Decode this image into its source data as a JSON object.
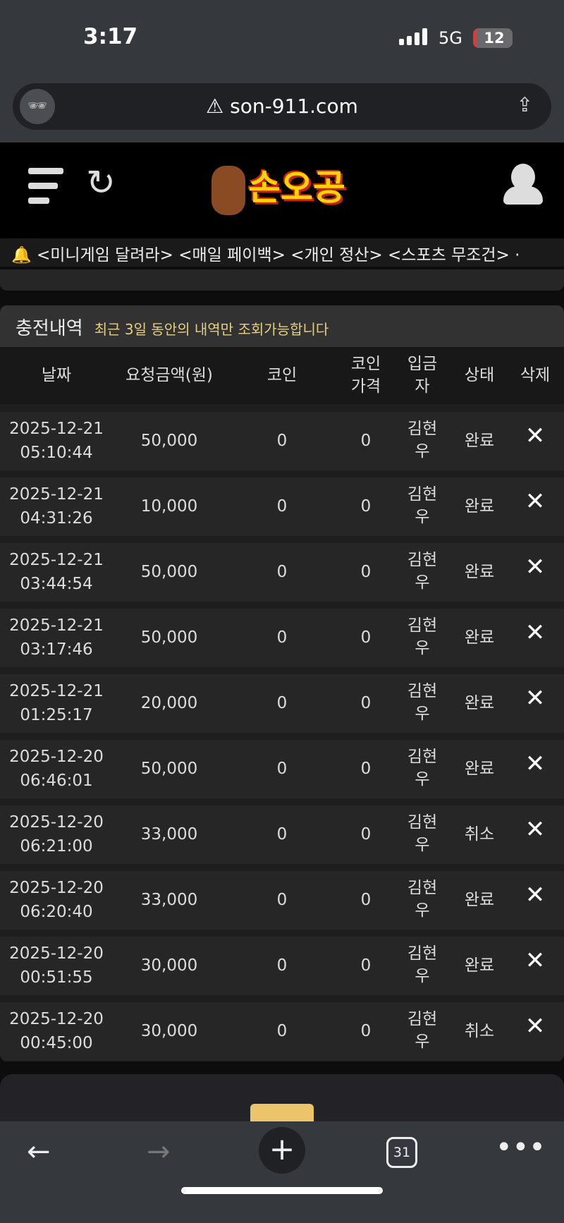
{
  "status_bar": {
    "time": "3:17",
    "network": "5G",
    "battery": "12"
  },
  "browser": {
    "url": "son-911.com",
    "tab_count": "31"
  },
  "site": {
    "logo_text": "손오공",
    "ticker": "<미니게임 달려라> <매일 페이백> <개인 정산> <스포츠 무조건> ·"
  },
  "section": {
    "title": "충전내역",
    "note": "최근 3일 동안의 내역만 조회가능합니다"
  },
  "table": {
    "headers": [
      "날짜",
      "요청금액(원)",
      "코인",
      "코인\n가격",
      "입금\n자",
      "상태",
      "삭제"
    ],
    "rows": [
      {
        "date": "2025-12-21",
        "time": "05:10:44",
        "amount": "50,000",
        "coin": "0",
        "price": "0",
        "depositor": "김현우",
        "status": "완료"
      },
      {
        "date": "2025-12-21",
        "time": "04:31:26",
        "amount": "10,000",
        "coin": "0",
        "price": "0",
        "depositor": "김현우",
        "status": "완료"
      },
      {
        "date": "2025-12-21",
        "time": "03:44:54",
        "amount": "50,000",
        "coin": "0",
        "price": "0",
        "depositor": "김현우",
        "status": "완료"
      },
      {
        "date": "2025-12-21",
        "time": "03:17:46",
        "amount": "50,000",
        "coin": "0",
        "price": "0",
        "depositor": "김현우",
        "status": "완료"
      },
      {
        "date": "2025-12-21",
        "time": "01:25:17",
        "amount": "20,000",
        "coin": "0",
        "price": "0",
        "depositor": "김현우",
        "status": "완료"
      },
      {
        "date": "2025-12-20",
        "time": "06:46:01",
        "amount": "50,000",
        "coin": "0",
        "price": "0",
        "depositor": "김현우",
        "status": "완료"
      },
      {
        "date": "2025-12-20",
        "time": "06:21:00",
        "amount": "33,000",
        "coin": "0",
        "price": "0",
        "depositor": "김현우",
        "status": "취소"
      },
      {
        "date": "2025-12-20",
        "time": "06:20:40",
        "amount": "33,000",
        "coin": "0",
        "price": "0",
        "depositor": "김현우",
        "status": "완료"
      },
      {
        "date": "2025-12-20",
        "time": "00:51:55",
        "amount": "30,000",
        "coin": "0",
        "price": "0",
        "depositor": "김현우",
        "status": "완료"
      },
      {
        "date": "2025-12-20",
        "time": "00:45:00",
        "amount": "30,000",
        "coin": "0",
        "price": "0",
        "depositor": "김현우",
        "status": "취소"
      }
    ]
  },
  "colors": {
    "accent": "#e6cf80",
    "pager": "#ecc46a"
  }
}
